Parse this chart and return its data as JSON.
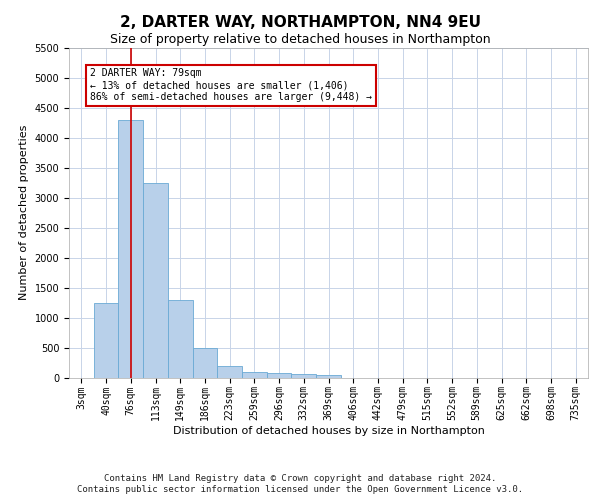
{
  "title": "2, DARTER WAY, NORTHAMPTON, NN4 9EU",
  "subtitle": "Size of property relative to detached houses in Northampton",
  "xlabel": "Distribution of detached houses by size in Northampton",
  "ylabel": "Number of detached properties",
  "categories": [
    "3sqm",
    "40sqm",
    "76sqm",
    "113sqm",
    "149sqm",
    "186sqm",
    "223sqm",
    "259sqm",
    "296sqm",
    "332sqm",
    "369sqm",
    "406sqm",
    "442sqm",
    "479sqm",
    "515sqm",
    "552sqm",
    "589sqm",
    "625sqm",
    "662sqm",
    "698sqm",
    "735sqm"
  ],
  "values": [
    0,
    1250,
    4300,
    3250,
    1300,
    500,
    200,
    100,
    75,
    60,
    50,
    0,
    0,
    0,
    0,
    0,
    0,
    0,
    0,
    0,
    0
  ],
  "bar_color": "#b8d0ea",
  "bar_edge_color": "#6aaad4",
  "property_line_index": 2,
  "property_line_color": "#cc0000",
  "ylim_max": 5500,
  "yticks": [
    0,
    500,
    1000,
    1500,
    2000,
    2500,
    3000,
    3500,
    4000,
    4500,
    5000,
    5500
  ],
  "annotation_line1": "2 DARTER WAY: 79sqm",
  "annotation_line2": "← 13% of detached houses are smaller (1,406)",
  "annotation_line3": "86% of semi-detached houses are larger (9,448) →",
  "annotation_box_edgecolor": "#cc0000",
  "footer_line1": "Contains HM Land Registry data © Crown copyright and database right 2024.",
  "footer_line2": "Contains public sector information licensed under the Open Government Licence v3.0.",
  "background_color": "#ffffff",
  "grid_color": "#c8d4e8",
  "title_fontsize": 11,
  "subtitle_fontsize": 9,
  "ylabel_fontsize": 8,
  "xlabel_fontsize": 8,
  "tick_fontsize": 7,
  "annotation_fontsize": 7,
  "footer_fontsize": 6.5
}
